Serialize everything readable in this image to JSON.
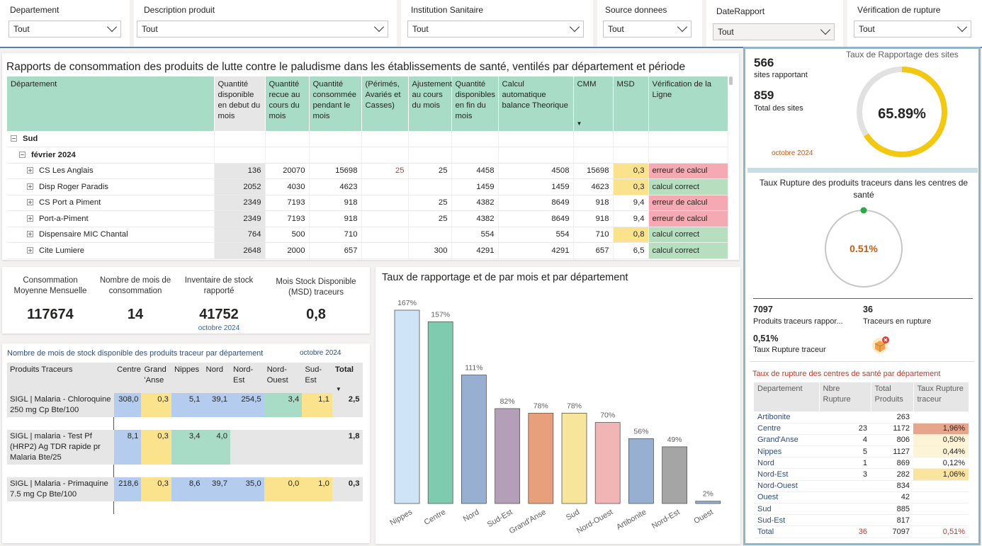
{
  "slicers": [
    {
      "label": "Departement",
      "value": "Tout"
    },
    {
      "label": "Description produit",
      "value": "Tout"
    },
    {
      "label": "Institution Sanitaire",
      "value": "Tout"
    },
    {
      "label": "Source donnees",
      "value": "Tout"
    },
    {
      "label": "DateRapport",
      "value": "Tout"
    },
    {
      "label": "Vérification de rupture",
      "value": "Tout"
    }
  ],
  "main_table": {
    "title": "Rapports de consommation des produits de lutte contre le paludisme dans les établissements de santé, ventilés par département et période",
    "headers": [
      "Département",
      "Quantité disponible en debut du mois",
      "Quantité recue au cours du mois",
      "Quantité consommée pendant le mois",
      "(Périmés, Avariés et Casses)",
      "Ajustement au cours du mois",
      "Quantité disponibles en fin du mois",
      "Calcul automatique balance Theorique",
      "CMM",
      "MSD",
      "Vérification de la Ligne"
    ],
    "group": "Sud",
    "period": "février 2024",
    "rows": [
      {
        "name": "CS Les Anglais",
        "debut": "136",
        "recue": "20070",
        "consommee": "15698",
        "perimes": "25",
        "ajust": "25",
        "fin": "4458",
        "calcul": "4508",
        "cmm": "15698",
        "msd": "0,3",
        "verif": "erreur de calcul"
      },
      {
        "name": "Disp Roger Paradis",
        "debut": "2052",
        "recue": "4030",
        "consommee": "4623",
        "perimes": "",
        "ajust": "",
        "fin": "1459",
        "calcul": "1459",
        "cmm": "4623",
        "msd": "0,3",
        "verif": "calcul correct"
      },
      {
        "name": "CS Port a Piment",
        "debut": "2349",
        "recue": "7193",
        "consommee": "918",
        "perimes": "",
        "ajust": "25",
        "fin": "4382",
        "calcul": "8649",
        "cmm": "918",
        "msd": "9,4",
        "verif": "erreur de calcul"
      },
      {
        "name": "Port-a-Piment",
        "debut": "2349",
        "recue": "7193",
        "consommee": "918",
        "perimes": "",
        "ajust": "25",
        "fin": "4382",
        "calcul": "8649",
        "cmm": "918",
        "msd": "9,4",
        "verif": "erreur de calcul"
      },
      {
        "name": "Dispensaire MIC Chantal",
        "debut": "764",
        "recue": "500",
        "consommee": "710",
        "perimes": "",
        "ajust": "",
        "fin": "554",
        "calcul": "554",
        "cmm": "710",
        "msd": "0,8",
        "verif": "calcul correct"
      },
      {
        "name": "Cite Lumiere",
        "debut": "2648",
        "recue": "2000",
        "consommee": "657",
        "perimes": "",
        "ajust": "300",
        "fin": "4291",
        "calcul": "4291",
        "cmm": "657",
        "msd": "6,5",
        "verif": "calcul correct"
      }
    ]
  },
  "kpis": {
    "cmm": {
      "label": "Consommation Moyenne Mensuelle",
      "value": "117674"
    },
    "mois": {
      "label": "Nombre de mois de consommation",
      "value": "14"
    },
    "inventaire": {
      "label": "Inventaire de stock rapporté",
      "value": "41752",
      "date": "octobre 2024"
    },
    "msd": {
      "label": "Mois Stock Disponible (MSD) traceurs",
      "value": "0,8"
    }
  },
  "tracer_table": {
    "title": "Nombre de mois de stock disponible des produits traceur par département",
    "date": "octobre 2024",
    "headers": [
      "Produits Traceurs",
      "Centre",
      "Grand 'Anse",
      "Nippes",
      "Nord",
      "Nord-Est",
      "Nord-Ouest",
      "Sud-Est",
      "Total"
    ],
    "rows": [
      {
        "name": "SIGL | Malaria - Chloroquine 250 mg Cp Bte/100",
        "cells": [
          "308,0",
          "0,3",
          "5,1",
          "39,1",
          "254,5",
          "3,4",
          "1,1"
        ],
        "total": "2,5"
      },
      {
        "name": "SIGL | malaria - Test Pf (HRP2) Ag TDR rapide pr Malaria Bte/25",
        "cells": [
          "8,1",
          "0,3",
          "3,4",
          "4,0",
          "",
          "",
          ""
        ],
        "total": "1,8"
      },
      {
        "name": "SIGL | Malaria - Primaquine 7.5 mg Cp Bte/100",
        "cells": [
          "218,6",
          "0,3",
          "8,6",
          "39,7",
          "35,0",
          "0,0",
          "1,0"
        ],
        "total": "0,3"
      }
    ]
  },
  "chart_data": {
    "type": "bar",
    "title": "Taux de rapportage et de par mois et par département",
    "categories": [
      "Nippes",
      "Centre",
      "Nord",
      "Sud-Est",
      "Grand'Anse",
      "Sud",
      "Nord-Ouest",
      "Artibonite",
      "Nord-Est",
      "Ouest"
    ],
    "values": [
      167,
      157,
      111,
      82,
      78,
      78,
      70,
      56,
      49,
      2
    ],
    "labels": [
      "167%",
      "157%",
      "111%",
      "82%",
      "78%",
      "78%",
      "70%",
      "56%",
      "49%",
      "2%"
    ],
    "colors": [
      "#cfe4f7",
      "#7ecbb0",
      "#97b0d1",
      "#b3a0b8",
      "#e8a07c",
      "#f7e59c",
      "#f1b5b5",
      "#97b0d1",
      "#a5a5a5",
      "#97b0d1"
    ],
    "ylim": [
      0,
      170
    ]
  },
  "right_panel": {
    "reporting": {
      "sites_count": "566",
      "sites_label": "sites rapportant",
      "total_count": "859",
      "total_label": "Total des sites",
      "date": "octobre 2024",
      "gauge_title": "Taux de Rapportage des sites",
      "gauge_value": "65.89%",
      "gauge_fraction": 0.6589,
      "gauge_color": "#f2c811"
    },
    "rupture": {
      "title": "Taux Rupture des produits traceurs dans les centres de santé",
      "value": "0.51%",
      "fraction": 0.0051,
      "color": "#c55a11"
    },
    "stats": {
      "produits_count": "7097",
      "produits_label": "Produits traceurs rappor...",
      "traceurs_count": "36",
      "traceurs_label": "Traceurs en rupture",
      "taux_value": "0,51%",
      "taux_label": "Taux Rupture traceur"
    },
    "dept_table": {
      "title": "Taux de rupture des centres de santé par département",
      "headers": [
        "Departement",
        "Nbre Rupture",
        "Total Produits",
        "Taux Rupture traceur"
      ],
      "rows": [
        {
          "name": "Artibonite",
          "rupture": "",
          "total": "263",
          "taux": ""
        },
        {
          "name": "Centre",
          "rupture": "23",
          "total": "1172",
          "taux": "1,96%"
        },
        {
          "name": "Grand'Anse",
          "rupture": "4",
          "total": "806",
          "taux": "0,50%"
        },
        {
          "name": "Nippes",
          "rupture": "5",
          "total": "1127",
          "taux": "0,44%"
        },
        {
          "name": "Nord",
          "rupture": "1",
          "total": "869",
          "taux": "0,12%"
        },
        {
          "name": "Nord-Est",
          "rupture": "3",
          "total": "282",
          "taux": "1,06%"
        },
        {
          "name": "Nord-Ouest",
          "rupture": "",
          "total": "834",
          "taux": ""
        },
        {
          "name": "Ouest",
          "rupture": "",
          "total": "42",
          "taux": ""
        },
        {
          "name": "Sud",
          "rupture": "",
          "total": "885",
          "taux": ""
        },
        {
          "name": "Sud-Est",
          "rupture": "",
          "total": "817",
          "taux": ""
        }
      ],
      "total": {
        "name": "Total",
        "rupture": "36",
        "total": "7097",
        "taux": "0,51%"
      }
    }
  }
}
